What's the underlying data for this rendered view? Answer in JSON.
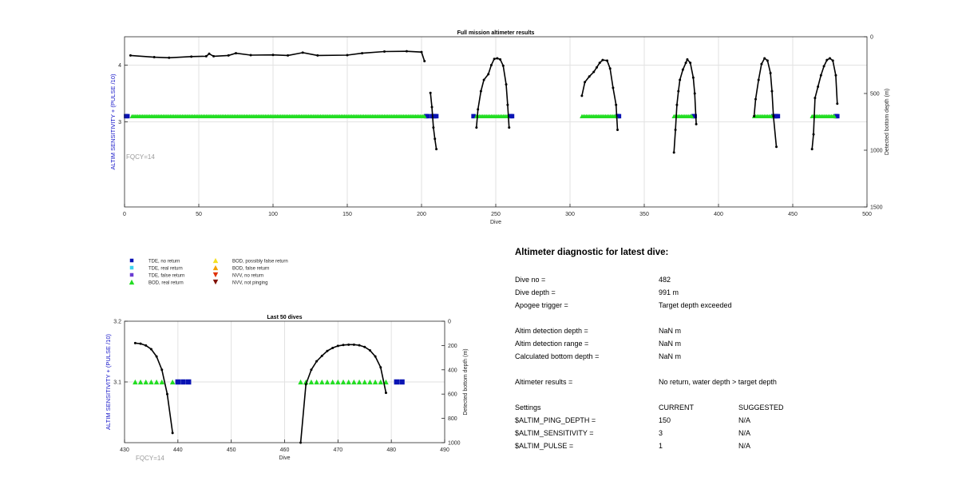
{
  "colors": {
    "tde_no_return": "#0a14b4",
    "tde_real_return": "#3cd2ee",
    "tde_false_return": "#6a3cd2",
    "bod_real_return": "#22dd22",
    "bod_possibly_false": "#f5e020",
    "bod_false_return": "#f5a000",
    "nvv_no_return": "#e03000",
    "nvv_not_pinging": "#801000",
    "depth_line": "#000000",
    "left_axis_label": "#1414c8",
    "fqcy": "#9a9a9a"
  },
  "legend": [
    {
      "label": "TDE, no return",
      "marker": "square",
      "color_key": "tde_no_return"
    },
    {
      "label": "TDE, real return",
      "marker": "square",
      "color_key": "tde_real_return"
    },
    {
      "label": "TDE, false return",
      "marker": "square",
      "color_key": "tde_false_return"
    },
    {
      "label": "BOD, real return",
      "marker": "triangle-up",
      "color_key": "bod_real_return"
    },
    {
      "label": "BOD, possibly false return",
      "marker": "triangle-up",
      "color_key": "bod_possibly_false"
    },
    {
      "label": "BOD, false return",
      "marker": "triangle-up",
      "color_key": "bod_false_return"
    },
    {
      "label": "NVV, no return",
      "marker": "triangle-down",
      "color_key": "nvv_no_return"
    },
    {
      "label": "NVV, not pinging",
      "marker": "triangle-down",
      "color_key": "nvv_not_pinging"
    }
  ],
  "chart_data": [
    {
      "type": "scatter",
      "title": "Full mission altimeter results",
      "xlabel": "Dive",
      "ylabel": "ALTIM SENSITIVITY + (PULSE /10)",
      "ylabel_right": "Detected bottom depth (m)",
      "annotation": "FQCY=14",
      "xlim": [
        0,
        500
      ],
      "ylim": [
        1.5,
        4.5
      ],
      "yrlim": [
        0,
        1500
      ],
      "x_ticks": [
        0,
        50,
        100,
        150,
        200,
        250,
        300,
        350,
        400,
        450,
        500
      ],
      "y_ticks": [
        3,
        4
      ],
      "yr_ticks": [
        0,
        500,
        1000,
        1500
      ],
      "grid": true,
      "series": [
        {
          "name": "TDE, no return",
          "marker": "square",
          "color_key": "tde_no_return",
          "y": 3.1,
          "x": [
            1,
            2,
            203,
            204,
            207,
            208,
            209,
            210,
            235,
            260,
            261,
            332,
            333,
            383,
            384,
            437,
            438,
            439,
            440,
            479,
            480
          ]
        },
        {
          "name": "BOD, real return",
          "marker": "triangle-up",
          "color_key": "bod_real_return",
          "y": 3.1,
          "ranges": [
            [
              5,
              202
            ],
            [
              237,
              258
            ],
            [
              308,
              331
            ],
            [
              370,
              382
            ],
            [
              424,
              436
            ],
            [
              463,
              478
            ]
          ]
        },
        {
          "name": "Detected bottom depth",
          "axis": "right",
          "color_key": "depth_line",
          "segments": [
            [
              [
                4,
                165
              ],
              [
                20,
                180
              ],
              [
                30,
                185
              ],
              [
                45,
                175
              ],
              [
                55,
                172
              ],
              [
                57,
                150
              ],
              [
                60,
                172
              ],
              [
                70,
                165
              ],
              [
                75,
                145
              ],
              [
                85,
                162
              ],
              [
                100,
                160
              ],
              [
                110,
                165
              ],
              [
                120,
                140
              ],
              [
                130,
                165
              ],
              [
                150,
                162
              ],
              [
                160,
                145
              ],
              [
                175,
                130
              ],
              [
                190,
                128
              ],
              [
                200,
                135
              ],
              [
                202,
                215
              ]
            ],
            [
              [
                206,
                495
              ],
              [
                207,
                620
              ],
              [
                208,
                800
              ],
              [
                209,
                900
              ],
              [
                210,
                990
              ]
            ],
            [
              [
                237,
                800
              ],
              [
                238,
                640
              ],
              [
                240,
                480
              ],
              [
                242,
                380
              ],
              [
                245,
                330
              ],
              [
                247,
                250
              ],
              [
                249,
                195
              ],
              [
                251,
                190
              ],
              [
                253,
                200
              ],
              [
                255,
                255
              ],
              [
                257,
                420
              ],
              [
                258,
                600
              ],
              [
                259,
                800
              ]
            ],
            [
              [
                308,
                520
              ],
              [
                310,
                400
              ],
              [
                313,
                350
              ],
              [
                316,
                310
              ],
              [
                318,
                270
              ],
              [
                320,
                230
              ],
              [
                322,
                205
              ],
              [
                325,
                210
              ],
              [
                327,
                280
              ],
              [
                329,
                450
              ],
              [
                331,
                600
              ],
              [
                332,
                820
              ]
            ],
            [
              [
                370,
                1020
              ],
              [
                371,
                820
              ],
              [
                372,
                600
              ],
              [
                373,
                480
              ],
              [
                374,
                380
              ],
              [
                376,
                290
              ],
              [
                378,
                230
              ],
              [
                379,
                200
              ],
              [
                381,
                230
              ],
              [
                383,
                360
              ],
              [
                384,
                500
              ],
              [
                385,
                770
              ]
            ],
            [
              [
                424,
                700
              ],
              [
                425,
                550
              ],
              [
                427,
                380
              ],
              [
                429,
                240
              ],
              [
                431,
                190
              ],
              [
                433,
                210
              ],
              [
                435,
                320
              ],
              [
                436,
                480
              ],
              [
                437,
                700
              ],
              [
                439,
                970
              ]
            ],
            [
              [
                463,
                990
              ],
              [
                464,
                860
              ],
              [
                465,
                540
              ],
              [
                467,
                440
              ],
              [
                469,
                340
              ],
              [
                471,
                260
              ],
              [
                473,
                205
              ],
              [
                475,
                190
              ],
              [
                477,
                210
              ],
              [
                479,
                340
              ],
              [
                480,
                590
              ]
            ]
          ]
        }
      ]
    },
    {
      "type": "scatter",
      "title": "Last 50 dives",
      "xlabel": "Dive",
      "ylabel": "ALTIM SENSITIVITY + (PULSE /10)",
      "ylabel_right": "Detected bottom depth (m)",
      "annotation": "FQCY=14",
      "xlim": [
        430,
        490
      ],
      "ylim": [
        3.0,
        3.2
      ],
      "yrlim": [
        0,
        1000
      ],
      "x_ticks": [
        430,
        440,
        450,
        460,
        470,
        480,
        490
      ],
      "y_ticks": [
        3.1,
        3.2
      ],
      "yr_ticks": [
        0,
        200,
        400,
        600,
        800,
        1000
      ],
      "grid": true,
      "series": [
        {
          "name": "TDE, no return",
          "marker": "square",
          "color_key": "tde_no_return",
          "y": 3.1,
          "x": [
            440,
            441,
            442,
            481,
            482
          ]
        },
        {
          "name": "BOD, real return",
          "marker": "triangle-up",
          "color_key": "bod_real_return",
          "y": 3.1,
          "x": [
            432,
            433,
            434,
            435,
            436,
            437,
            439,
            463,
            464,
            465,
            466,
            467,
            468,
            469,
            470,
            471,
            472,
            473,
            474,
            475,
            476,
            477,
            478,
            479
          ]
        },
        {
          "name": "Detected bottom depth",
          "axis": "right",
          "color_key": "depth_line",
          "segments": [
            [
              [
                432,
                180
              ],
              [
                433,
                185
              ],
              [
                434,
                200
              ],
              [
                435,
                230
              ],
              [
                436,
                290
              ],
              [
                437,
                400
              ],
              [
                438,
                600
              ],
              [
                439,
                920
              ]
            ],
            [
              [
                463,
                1000
              ],
              [
                464,
                520
              ],
              [
                465,
                400
              ],
              [
                466,
                330
              ],
              [
                467,
                285
              ],
              [
                468,
                245
              ],
              [
                469,
                220
              ],
              [
                470,
                203
              ],
              [
                471,
                196
              ],
              [
                472,
                193
              ],
              [
                473,
                193
              ],
              [
                474,
                198
              ],
              [
                475,
                212
              ],
              [
                476,
                240
              ],
              [
                477,
                290
              ],
              [
                478,
                380
              ],
              [
                479,
                590
              ]
            ]
          ]
        }
      ]
    }
  ],
  "diagnostic": {
    "title": "Altimeter diagnostic for latest dive:",
    "rows": [
      {
        "label": "Dive no =",
        "value": "482"
      },
      {
        "label": "Dive depth =",
        "value": "991 m"
      },
      {
        "label": "Apogee trigger =",
        "value": "Target depth exceeded"
      },
      {
        "label": "Altim detection depth =",
        "value": "NaN m"
      },
      {
        "label": "Altim detection range =",
        "value": "NaN m"
      },
      {
        "label": "Calculated bottom depth =",
        "value": "NaN m"
      },
      {
        "label": "Altimeter results =",
        "value": "No return, water depth > target depth"
      }
    ],
    "settings_header": {
      "label": "Settings",
      "current": "CURRENT",
      "suggested": "SUGGESTED"
    },
    "settings": [
      {
        "label": "$ALTIM_PING_DEPTH =",
        "current": "150",
        "suggested": "N/A"
      },
      {
        "label": "$ALTIM_SENSITIVITY =",
        "current": "3",
        "suggested": "N/A"
      },
      {
        "label": "$ALTIM_PULSE =",
        "current": "1",
        "suggested": "N/A"
      }
    ]
  }
}
